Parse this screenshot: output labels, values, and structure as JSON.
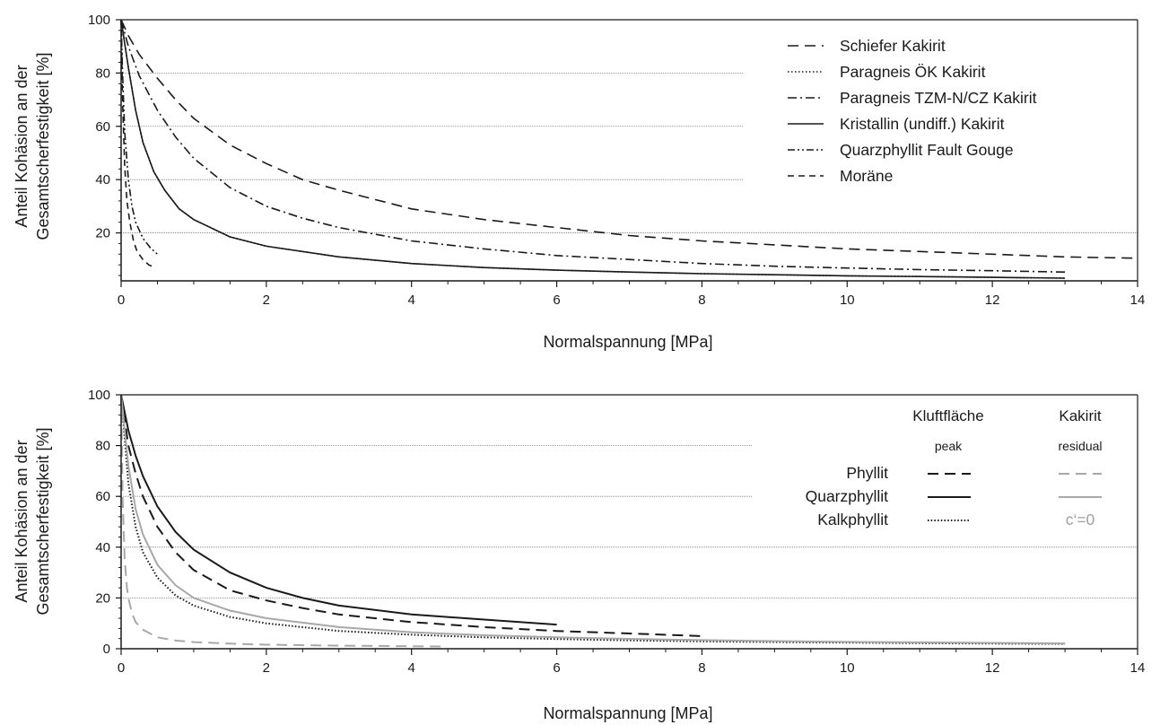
{
  "chart_data": [
    {
      "type": "line",
      "xlabel": "Normalspannung [MPa]",
      "ylabel_line1": "Anteil Kohäsion an der",
      "ylabel_line2": "Gesamtscherfestigkeit [%]",
      "xlim": [
        0,
        14
      ],
      "ylim": [
        2,
        100
      ],
      "xticks": [
        0,
        2,
        4,
        6,
        8,
        10,
        12,
        14
      ],
      "yticks": [
        20,
        40,
        60,
        80,
        100
      ],
      "grid_y": [
        20,
        40,
        60,
        80
      ],
      "legend_position": "top-right",
      "series": [
        {
          "name": "Schiefer Kakirit",
          "dash": "12,7",
          "color": "#1a1a1a",
          "x": [
            0,
            0.1,
            0.25,
            0.5,
            0.75,
            1,
            1.5,
            2,
            2.5,
            3,
            4,
            5,
            6,
            7,
            8,
            9,
            10,
            11,
            12,
            13,
            14
          ],
          "y": [
            100,
            94,
            87,
            78,
            70,
            63,
            53,
            46,
            40,
            36,
            29,
            25,
            22,
            19,
            17,
            15.5,
            14,
            13,
            12,
            11,
            10.5
          ]
        },
        {
          "name": "Paragneis ÖK Kakirit",
          "dash": "1.5,2.5",
          "color": "#1a1a1a",
          "x": [
            0,
            0.1,
            0.2,
            0.3,
            0.45,
            0.6,
            0.8,
            1,
            1.5,
            2,
            3,
            4,
            5,
            6,
            7,
            8,
            9,
            10,
            11,
            12,
            13
          ],
          "y": [
            100,
            82,
            66,
            54,
            43,
            36,
            29,
            25,
            18.5,
            15,
            11,
            8.5,
            7,
            6,
            5.3,
            4.7,
            4.3,
            3.9,
            3.6,
            3.3,
            3
          ]
        },
        {
          "name": "Paragneis TZM-N/CZ Kakirit",
          "dash": "10,4,2,4",
          "color": "#1a1a1a",
          "x": [
            0,
            0.1,
            0.25,
            0.5,
            0.75,
            1,
            1.5,
            2,
            2.5,
            3,
            4,
            5,
            6,
            7,
            8,
            9,
            10,
            11,
            12,
            13
          ],
          "y": [
            100,
            90,
            79,
            66,
            56,
            48,
            37,
            30,
            25.5,
            22,
            17,
            14,
            11.5,
            10,
            8.5,
            7.5,
            6.8,
            6.2,
            5.8,
            5.3
          ]
        },
        {
          "name": "Kristallin (undiff.) Kakirit",
          "dash": "",
          "color": "#1a1a1a",
          "x": [
            0,
            0.1,
            0.2,
            0.3,
            0.45,
            0.6,
            0.8,
            1,
            1.5,
            2,
            3,
            4,
            5,
            6,
            7,
            8,
            9,
            10,
            11,
            12,
            13
          ],
          "y": [
            100,
            82,
            66,
            54,
            43,
            36,
            29,
            25,
            18.5,
            15,
            11,
            8.5,
            7,
            6,
            5.3,
            4.7,
            4.3,
            3.9,
            3.6,
            3.3,
            3
          ]
        },
        {
          "name": "Quarzphyllit Fault Gouge",
          "dash": "8,3,2,3,2,3",
          "color": "#1a1a1a",
          "x": [
            0,
            0.02,
            0.05,
            0.1,
            0.15,
            0.2,
            0.3,
            0.4,
            0.5
          ],
          "y": [
            100,
            80,
            58,
            40,
            30,
            24,
            18,
            14.5,
            12
          ]
        },
        {
          "name": "Moräne",
          "dash": "7,5",
          "color": "#1a1a1a",
          "x": [
            0,
            0.02,
            0.05,
            0.08,
            0.12,
            0.17,
            0.22,
            0.3,
            0.38,
            0.47
          ],
          "y": [
            100,
            70,
            45,
            32,
            24,
            17,
            13,
            10,
            8,
            7
          ]
        }
      ]
    },
    {
      "type": "line",
      "xlabel": "Normalspannung [MPa]",
      "ylabel_line1": "Anteil Kohäsion an der",
      "ylabel_line2": "Gesamtscherfestigkeit [%]",
      "xlim": [
        0,
        14
      ],
      "ylim": [
        0,
        100
      ],
      "xticks": [
        0,
        2,
        4,
        6,
        8,
        10,
        12,
        14
      ],
      "yticks": [
        0,
        20,
        40,
        60,
        80,
        100
      ],
      "grid_y": [
        0,
        20,
        40,
        60,
        80
      ],
      "legend_position": "top-right",
      "legend_table": {
        "col1_head": "Kluftfläche",
        "col1_sub": "peak",
        "col2_head": "Kakirit",
        "col2_sub": "residual",
        "rows": [
          {
            "label": "Phyllit",
            "col2_note": ""
          },
          {
            "label": "Quarzphyllit",
            "col2_note": ""
          },
          {
            "label": "Kalkphyllit",
            "col2_note": "c‘=0"
          }
        ]
      },
      "series": [
        {
          "name": "Phyllit Kluftfläche peak",
          "dash": "12,7",
          "color": "#1a1a1a",
          "width": 2,
          "x": [
            0,
            0.1,
            0.2,
            0.3,
            0.5,
            0.75,
            1,
            1.5,
            2,
            2.5,
            3,
            4,
            5,
            6,
            7,
            8
          ],
          "y": [
            100,
            80,
            69,
            60,
            48,
            38,
            31,
            23,
            19,
            16,
            13.5,
            10.5,
            8.5,
            7,
            6,
            5
          ]
        },
        {
          "name": "Quarzphyllit Kluftfläche peak",
          "dash": "",
          "color": "#1a1a1a",
          "width": 2,
          "x": [
            0,
            0.1,
            0.2,
            0.3,
            0.5,
            0.75,
            1,
            1.5,
            2,
            2.5,
            3,
            4,
            5,
            6
          ],
          "y": [
            100,
            86,
            76,
            68,
            56,
            46,
            39,
            30,
            24,
            20,
            17,
            13.5,
            11.5,
            9.5
          ]
        },
        {
          "name": "Kalkphyllit Kluftfläche peak",
          "dash": "1.5,2.2",
          "color": "#1a1a1a",
          "width": 2,
          "x": [
            0,
            0.1,
            0.2,
            0.3,
            0.5,
            0.75,
            1,
            1.5,
            2,
            3,
            4,
            5,
            6,
            7,
            8,
            9,
            10,
            11,
            12,
            13
          ],
          "y": [
            100,
            65,
            48,
            38,
            28,
            21,
            17,
            12.5,
            10,
            7,
            5.5,
            4.5,
            3.8,
            3.3,
            2.9,
            2.6,
            2.4,
            2.2,
            2,
            1.9
          ]
        },
        {
          "name": "Phyllit Kakirit residual",
          "dash": "12,7",
          "color": "#a8a8a8",
          "width": 2,
          "x": [
            0,
            0.02,
            0.05,
            0.08,
            0.1,
            0.15,
            0.2,
            0.3,
            0.5,
            0.75,
            1,
            1.5,
            2,
            3,
            4,
            4.4
          ],
          "y": [
            100,
            60,
            35,
            24,
            20,
            14,
            10.5,
            7.5,
            4.5,
            3.2,
            2.6,
            2,
            1.6,
            1.2,
            1,
            0.9
          ]
        },
        {
          "name": "Quarzphyllit Kakirit residual",
          "dash": "",
          "color": "#a8a8a8",
          "width": 2,
          "x": [
            0,
            0.1,
            0.2,
            0.3,
            0.5,
            0.75,
            1,
            1.5,
            2,
            3,
            4,
            5,
            6,
            7,
            8,
            9,
            10,
            11,
            12,
            13
          ],
          "y": [
            100,
            72,
            55,
            45,
            33,
            25,
            20,
            15,
            12,
            8.5,
            6.5,
            5.3,
            4.5,
            3.9,
            3.4,
            3,
            2.7,
            2.5,
            2.3,
            2.1
          ]
        }
      ]
    }
  ]
}
